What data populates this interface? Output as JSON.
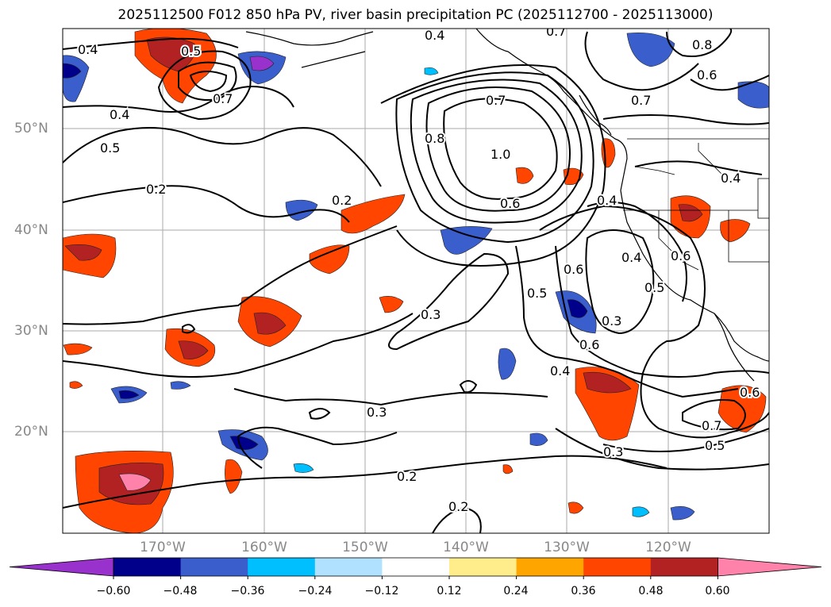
{
  "title": "2025112500 F012 850 hPa PV, river basin precipitation PC (2025112700 - 2025113000)",
  "lat_labels": [
    "50°N",
    "40°N",
    "30°N",
    "20°N"
  ],
  "lon_labels": [
    "170°W",
    "160°W",
    "150°W",
    "140°W",
    "130°W",
    "120°W"
  ],
  "colorbar": {
    "colors": [
      "#9932cc",
      "#00008b",
      "#3a5fcd",
      "#00bfff",
      "#b0e2ff",
      "#ffffff",
      "#ffec8b",
      "#ffa500",
      "#ff4500",
      "#b22222",
      "#ff82ab"
    ],
    "ticks": [
      "−0.60",
      "−0.48",
      "−0.36",
      "−0.24",
      "−0.12",
      "0.12",
      "0.24",
      "0.36",
      "0.48",
      "0.60"
    ]
  },
  "contour_labels": [
    "0.4",
    "0.5",
    "0.7",
    "0.4",
    "0.5",
    "0.2",
    "0.2",
    "0.4",
    "0.7",
    "0.8",
    "1.0",
    "0.6",
    "0.7",
    "0.8",
    "0.6",
    "0.7",
    "0.4",
    "0.4",
    "0.6",
    "0.5",
    "0.6",
    "0.4",
    "0.5",
    "0.3",
    "0.6",
    "0.3",
    "0.3",
    "0.4",
    "0.7",
    "0.5",
    "0.3",
    "0.2",
    "0.2",
    "0.6"
  ]
}
